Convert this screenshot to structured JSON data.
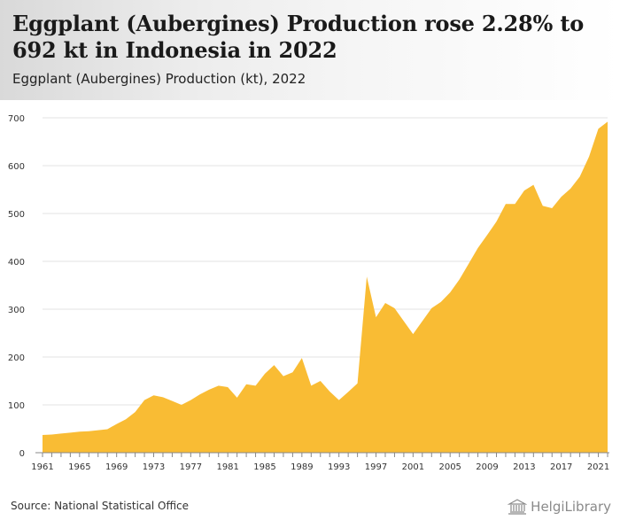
{
  "header": {
    "title": "Eggplant (Aubergines) Production rose 2.28% to 692 kt in Indonesia in 2022",
    "subtitle": "Eggplant (Aubergines) Production (kt), 2022"
  },
  "footer": {
    "source": "Source: National Statistical Office",
    "logo_text": "HelgiLibrary"
  },
  "colors": {
    "area": "#F9BC34",
    "grid": "#e3e3e3",
    "axis": "#888888"
  },
  "chart_data": {
    "type": "area",
    "title": "Eggplant (Aubergines) Production rose 2.28% to 692 kt in Indonesia in 2022",
    "subtitle": "Eggplant (Aubergines) Production (kt), 2022",
    "xlabel": "",
    "ylabel": "",
    "ylim": [
      0,
      700
    ],
    "yticks": [
      0,
      100,
      200,
      300,
      400,
      500,
      600,
      700
    ],
    "xticks": [
      1961,
      1965,
      1969,
      1973,
      1977,
      1981,
      1985,
      1989,
      1993,
      1997,
      2001,
      2005,
      2009,
      2013,
      2017,
      2021
    ],
    "grid": true,
    "legend": "none",
    "series": [
      {
        "x": [
          1961,
          1962,
          1963,
          1964,
          1965,
          1966,
          1967,
          1968,
          1969,
          1970,
          1971,
          1972,
          1973,
          1974,
          1975,
          1976,
          1977,
          1978,
          1979,
          1980,
          1981,
          1982,
          1983,
          1984,
          1985,
          1986,
          1987,
          1988,
          1989,
          1990,
          1991,
          1992,
          1993,
          1994,
          1995,
          1996,
          1997,
          1998,
          1999,
          2000,
          2001,
          2002,
          2003,
          2004,
          2005,
          2006,
          2007,
          2008,
          2009,
          2010,
          2011,
          2012,
          2013,
          2014,
          2015,
          2016,
          2017,
          2018,
          2019,
          2020,
          2021,
          2022
        ],
        "values": [
          37,
          38,
          40,
          42,
          44,
          45,
          47,
          49,
          60,
          70,
          85,
          110,
          120,
          116,
          108,
          100,
          110,
          122,
          132,
          140,
          137,
          115,
          143,
          140,
          165,
          183,
          160,
          168,
          198,
          140,
          150,
          128,
          110,
          127,
          145,
          368,
          283,
          313,
          302,
          275,
          248,
          275,
          302,
          315,
          335,
          362,
          395,
          428,
          455,
          483,
          520,
          520,
          548,
          560,
          516,
          511,
          535,
          552,
          577,
          619,
          677,
          692
        ]
      }
    ]
  }
}
